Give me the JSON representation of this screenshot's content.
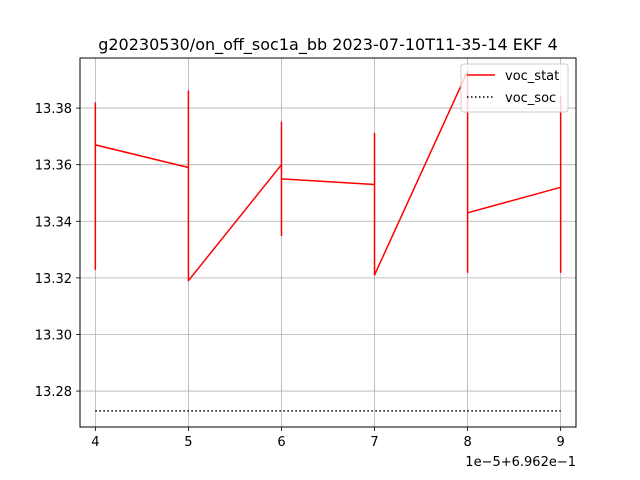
{
  "chart_data": {
    "type": "line",
    "title": "g20230530/on_off_soc1a_bb   2023-07-10T11-35-14 EKF 4",
    "xlabel": "",
    "ylabel": "",
    "x_offset_label": "1e−5+6.962e−1",
    "xlim": [
      0.69623835,
      0.69629165
    ],
    "ylim": [
      13.2673,
      13.3977
    ],
    "x_ticks": [
      0.69624,
      0.69625,
      0.69626,
      0.69627,
      0.69628,
      0.69629
    ],
    "x_tick_labels": [
      "4",
      "5",
      "6",
      "7",
      "8",
      "9"
    ],
    "y_ticks": [
      13.28,
      13.3,
      13.32,
      13.34,
      13.36,
      13.38
    ],
    "y_tick_labels": [
      "13.28",
      "13.30",
      "13.32",
      "13.34",
      "13.36",
      "13.38"
    ],
    "grid": true,
    "legend_position": "top-right",
    "series": [
      {
        "name": "voc_stat",
        "color": "#ff0000",
        "style": "solid",
        "x": [
          0.69624,
          0.69624,
          0.69624,
          0.69624,
          0.69625,
          0.69625,
          0.69625,
          0.69626,
          0.69626,
          0.69626,
          0.69626,
          0.69627,
          0.69627,
          0.69627,
          0.69628,
          0.69628,
          0.69628,
          0.69628,
          0.69629,
          0.69629,
          0.69629,
          0.69629
        ],
        "y": [
          13.382,
          13.323,
          13.38,
          13.367,
          13.359,
          13.386,
          13.319,
          13.36,
          13.375,
          13.335,
          13.355,
          13.353,
          13.371,
          13.321,
          13.393,
          13.322,
          13.378,
          13.343,
          13.352,
          13.322,
          13.384,
          13.361
        ]
      },
      {
        "name": "voc_soc",
        "color": "#000000",
        "style": "dotted",
        "x": [
          0.69624,
          0.69625,
          0.69626,
          0.69627,
          0.69628,
          0.69629
        ],
        "y": [
          13.273,
          13.273,
          13.273,
          13.273,
          13.273,
          13.273
        ]
      }
    ]
  }
}
